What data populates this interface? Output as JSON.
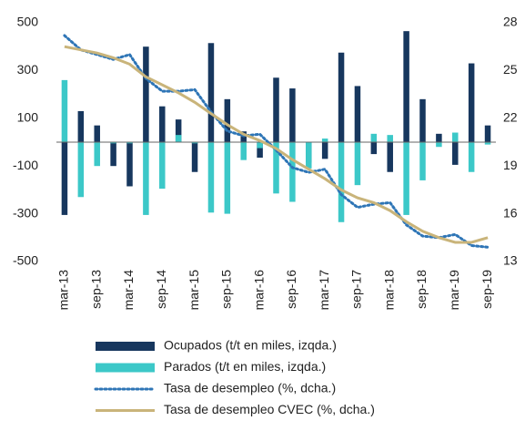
{
  "chart_data": {
    "type": "bar",
    "categories": [
      "mar-13",
      null,
      "sep-13",
      null,
      "mar-14",
      null,
      "sep-14",
      null,
      "mar-15",
      null,
      "sep-15",
      null,
      "mar-16",
      null,
      "sep-16",
      null,
      "mar-17",
      null,
      "sep-17",
      null,
      "mar-18",
      null,
      "sep-18",
      null,
      "mar-19",
      null,
      "sep-19"
    ],
    "series": [
      {
        "name": "Ocupados (t/t en miles, izqda.)",
        "type": "bar",
        "color": "#17375e",
        "values": [
          -305,
          130,
          70,
          -100,
          -185,
          400,
          150,
          95,
          -125,
          415,
          180,
          45,
          -65,
          270,
          225,
          -85,
          -70,
          375,
          235,
          -50,
          -125,
          465,
          180,
          35,
          -95,
          330,
          70
        ]
      },
      {
        "name": "Parados (t/t en miles, izqda.)",
        "type": "bar",
        "color": "#3cc8c8",
        "values": [
          260,
          -230,
          -100,
          -5,
          -5,
          -305,
          -195,
          30,
          -5,
          -295,
          -300,
          -75,
          -25,
          -215,
          -250,
          -110,
          15,
          -335,
          -180,
          35,
          30,
          -305,
          -160,
          -20,
          40,
          -125,
          -10
        ]
      },
      {
        "name": "Tasa de desempleo (%, dcha.)",
        "type": "line",
        "style": "dotted",
        "axis": "y2",
        "color": "#2e75b6",
        "values": [
          27.2,
          26.3,
          26.0,
          25.7,
          26.0,
          24.5,
          23.7,
          23.7,
          23.8,
          22.4,
          21.2,
          20.9,
          21.0,
          20.0,
          18.9,
          18.6,
          18.8,
          17.2,
          16.4,
          16.6,
          16.7,
          15.3,
          14.6,
          14.5,
          14.7,
          14.0,
          13.9
        ]
      },
      {
        "name": "Tasa de desempleo CVEC (%, dcha.)",
        "type": "line",
        "style": "solid",
        "axis": "y2",
        "color": "#c9b47a",
        "values": [
          26.5,
          26.3,
          26.1,
          25.8,
          25.4,
          24.6,
          24.1,
          23.6,
          23.0,
          22.3,
          21.6,
          21.0,
          20.6,
          20.1,
          19.4,
          18.8,
          18.2,
          17.5,
          17.0,
          16.7,
          16.2,
          15.5,
          14.9,
          14.5,
          14.2,
          14.2,
          14.5
        ]
      }
    ],
    "ylim": [
      -500,
      500
    ],
    "yticks": [
      -500,
      -300,
      -100,
      100,
      300,
      500
    ],
    "y2lim": [
      13,
      28
    ],
    "y2ticks": [
      13,
      16,
      19,
      22,
      25,
      28
    ],
    "grid": false,
    "legend": "bottom"
  }
}
